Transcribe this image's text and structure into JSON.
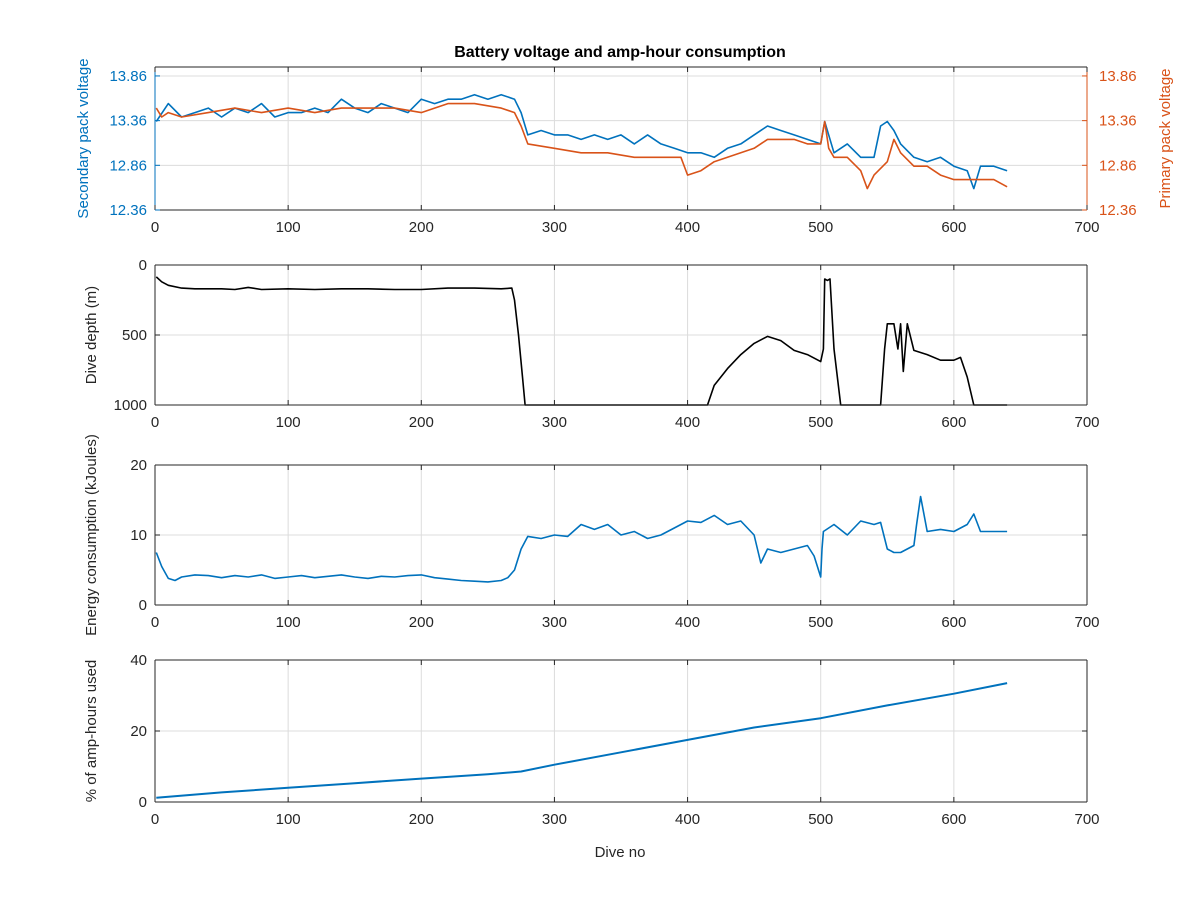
{
  "figure": {
    "title": "Battery voltage and amp-hour consumption",
    "xlabel": "Dive no"
  },
  "colors": {
    "blue": "#0072BD",
    "orange": "#D95319",
    "black": "#000000",
    "grid": "#dcdcdc",
    "axis": "#262626"
  },
  "chart_data": [
    {
      "id": "voltage",
      "type": "line",
      "title": "Battery voltage and amp-hour consumption",
      "xlim": [
        0,
        700
      ],
      "xticks": [
        "0",
        "100",
        "200",
        "300",
        "400",
        "500",
        "600",
        "700"
      ],
      "grid": true,
      "ylabel_left": "Secondary pack voltage",
      "ylabel_right": "Primary pack voltage",
      "ylim": [
        12.36,
        13.96
      ],
      "yticks_left": [
        "13.86",
        "13.36",
        "12.86",
        "12.36"
      ],
      "yticks_right": [
        "13.86",
        "13.36",
        "12.86",
        "12.36"
      ],
      "series": [
        {
          "axis": "left",
          "color": "#0072BD",
          "x": [
            1,
            10,
            20,
            30,
            40,
            50,
            60,
            70,
            80,
            90,
            100,
            110,
            120,
            130,
            140,
            150,
            160,
            170,
            180,
            190,
            200,
            210,
            220,
            230,
            240,
            250,
            260,
            270,
            275,
            280,
            290,
            300,
            310,
            320,
            330,
            340,
            350,
            360,
            370,
            380,
            390,
            400,
            410,
            420,
            430,
            440,
            450,
            460,
            470,
            480,
            490,
            500,
            503,
            510,
            520,
            530,
            540,
            545,
            550,
            555,
            560,
            570,
            580,
            590,
            600,
            610,
            615,
            620,
            630,
            640
          ],
          "y": [
            13.35,
            13.55,
            13.4,
            13.45,
            13.5,
            13.4,
            13.5,
            13.45,
            13.55,
            13.4,
            13.45,
            13.45,
            13.5,
            13.45,
            13.6,
            13.5,
            13.45,
            13.55,
            13.5,
            13.45,
            13.6,
            13.55,
            13.6,
            13.6,
            13.65,
            13.6,
            13.65,
            13.6,
            13.45,
            13.2,
            13.25,
            13.2,
            13.2,
            13.15,
            13.2,
            13.15,
            13.2,
            13.1,
            13.2,
            13.1,
            13.05,
            13.0,
            13.0,
            12.95,
            13.05,
            13.1,
            13.2,
            13.3,
            13.25,
            13.2,
            13.15,
            13.1,
            13.35,
            13.0,
            13.1,
            12.95,
            12.95,
            13.3,
            13.35,
            13.25,
            13.1,
            12.95,
            12.9,
            12.95,
            12.85,
            12.8,
            12.6,
            12.85,
            12.85,
            12.8
          ]
        },
        {
          "axis": "right",
          "color": "#D95319",
          "x": [
            1,
            5,
            10,
            20,
            40,
            60,
            80,
            100,
            120,
            140,
            160,
            180,
            200,
            220,
            240,
            260,
            270,
            275,
            280,
            300,
            320,
            340,
            360,
            380,
            395,
            400,
            410,
            420,
            430,
            440,
            450,
            460,
            470,
            480,
            490,
            500,
            503,
            506,
            510,
            520,
            530,
            535,
            540,
            550,
            555,
            560,
            570,
            580,
            590,
            600,
            610,
            620,
            630,
            640
          ],
          "y": [
            13.5,
            13.4,
            13.45,
            13.4,
            13.45,
            13.5,
            13.45,
            13.5,
            13.45,
            13.5,
            13.5,
            13.5,
            13.45,
            13.55,
            13.55,
            13.5,
            13.45,
            13.3,
            13.1,
            13.05,
            13.0,
            13.0,
            12.95,
            12.95,
            12.95,
            12.75,
            12.8,
            12.9,
            12.95,
            13.0,
            13.05,
            13.15,
            13.15,
            13.15,
            13.1,
            13.1,
            13.35,
            13.05,
            12.95,
            12.95,
            12.8,
            12.6,
            12.75,
            12.9,
            13.15,
            13.0,
            12.85,
            12.85,
            12.75,
            12.7,
            12.7,
            12.7,
            12.7,
            12.62
          ]
        }
      ]
    },
    {
      "id": "depth",
      "type": "line",
      "xlim": [
        0,
        700
      ],
      "xticks": [
        "0",
        "100",
        "200",
        "300",
        "400",
        "500",
        "600",
        "700"
      ],
      "grid": true,
      "ylabel": "Dive depth (m)",
      "ylim": [
        0,
        1000
      ],
      "y_reversed": true,
      "yticks": [
        "0",
        "500",
        "1000"
      ],
      "series": [
        {
          "color": "#000000",
          "x": [
            1,
            5,
            10,
            20,
            30,
            50,
            60,
            70,
            80,
            100,
            120,
            140,
            160,
            180,
            200,
            220,
            240,
            260,
            268,
            270,
            273,
            276,
            278,
            280,
            300,
            350,
            400,
            415,
            420,
            430,
            440,
            450,
            460,
            470,
            480,
            490,
            500,
            502,
            503,
            505,
            507,
            510,
            515,
            516,
            520,
            540,
            545,
            548,
            550,
            555,
            558,
            560,
            562,
            565,
            570,
            580,
            590,
            600,
            605,
            610,
            615,
            620,
            640
          ],
          "y": [
            85,
            120,
            145,
            165,
            170,
            170,
            175,
            160,
            175,
            170,
            175,
            170,
            170,
            175,
            175,
            165,
            165,
            170,
            165,
            250,
            500,
            800,
            1000,
            1000,
            1000,
            1000,
            1000,
            1000,
            860,
            740,
            640,
            560,
            510,
            540,
            610,
            640,
            690,
            600,
            100,
            110,
            100,
            600,
            1000,
            1000,
            1000,
            1000,
            1000,
            600,
            420,
            420,
            600,
            420,
            760,
            420,
            610,
            640,
            680,
            680,
            660,
            800,
            1000,
            1000,
            1000
          ]
        }
      ]
    },
    {
      "id": "energy",
      "type": "line",
      "xlim": [
        0,
        700
      ],
      "xticks": [
        "0",
        "100",
        "200",
        "300",
        "400",
        "500",
        "600",
        "700"
      ],
      "grid": true,
      "ylabel": "Energy consumption (kJoules)",
      "ylim": [
        0,
        20
      ],
      "yticks": [
        "20",
        "10",
        "0"
      ],
      "series": [
        {
          "color": "#0072BD",
          "x": [
            1,
            5,
            10,
            15,
            20,
            30,
            40,
            50,
            60,
            70,
            80,
            90,
            100,
            110,
            120,
            130,
            140,
            150,
            160,
            170,
            180,
            190,
            200,
            210,
            220,
            230,
            240,
            250,
            260,
            265,
            270,
            275,
            280,
            290,
            300,
            310,
            320,
            330,
            340,
            350,
            360,
            370,
            380,
            390,
            400,
            410,
            420,
            430,
            440,
            450,
            455,
            460,
            470,
            480,
            490,
            495,
            500,
            501,
            502,
            510,
            520,
            530,
            540,
            545,
            550,
            555,
            560,
            570,
            572,
            575,
            580,
            590,
            600,
            610,
            615,
            620,
            630,
            640
          ],
          "y": [
            7.5,
            5.5,
            3.8,
            3.5,
            4.0,
            4.3,
            4.2,
            3.9,
            4.2,
            4.0,
            4.3,
            3.8,
            4.0,
            4.2,
            3.9,
            4.1,
            4.3,
            4.0,
            3.8,
            4.1,
            4.0,
            4.2,
            4.3,
            3.9,
            3.7,
            3.5,
            3.4,
            3.3,
            3.5,
            3.9,
            5.0,
            8.0,
            9.8,
            9.5,
            10.0,
            9.8,
            11.5,
            10.8,
            11.5,
            10.0,
            10.5,
            9.5,
            10.0,
            11.0,
            12.0,
            11.8,
            12.8,
            11.5,
            12.0,
            10.0,
            6.0,
            8.0,
            7.5,
            8.0,
            8.5,
            7.0,
            4.0,
            8.0,
            10.5,
            11.5,
            10.0,
            12.0,
            11.5,
            11.8,
            8.0,
            7.5,
            7.5,
            8.5,
            11.5,
            15.5,
            10.5,
            10.8,
            10.5,
            11.5,
            13.0,
            10.5,
            10.5,
            10.5
          ]
        }
      ]
    },
    {
      "id": "amphours",
      "type": "line",
      "xlim": [
        0,
        700
      ],
      "xticks": [
        "0",
        "100",
        "200",
        "300",
        "400",
        "500",
        "600",
        "700"
      ],
      "grid": true,
      "xlabel": "Dive no",
      "ylabel": "% of amp-hours used",
      "ylim": [
        0,
        40
      ],
      "yticks": [
        "40",
        "20",
        "0"
      ],
      "series": [
        {
          "color": "#0072BD",
          "x": [
            1,
            50,
            100,
            150,
            200,
            250,
            275,
            300,
            350,
            400,
            450,
            500,
            550,
            600,
            640
          ],
          "y": [
            1.2,
            2.7,
            4.0,
            5.3,
            6.6,
            7.8,
            8.6,
            10.5,
            14.0,
            17.5,
            21.0,
            23.6,
            27.2,
            30.5,
            33.5
          ]
        }
      ]
    }
  ]
}
